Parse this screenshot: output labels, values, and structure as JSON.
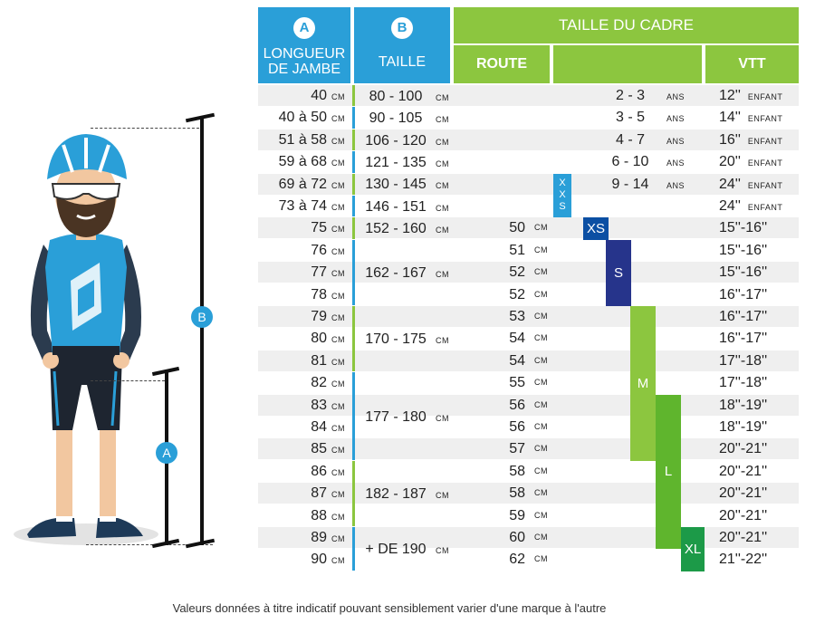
{
  "header": {
    "col_a_letter": "A",
    "col_a_line1": "LONGUEUR",
    "col_a_line2": "DE JAMBE",
    "col_b_letter": "B",
    "col_b_label": "TAILLE",
    "frame_title": "TAILLE DU CADRE",
    "route_label": "ROUTE",
    "vtt_label": "VTT"
  },
  "units": {
    "cm": "CM",
    "ans": "ANS",
    "enfant": "ENFANT"
  },
  "rows": [
    {
      "leg": "40",
      "route": "",
      "age": "2 - 3",
      "vtt": "12''",
      "enfant": true,
      "gray": true
    },
    {
      "leg": "40 à 50",
      "route": "",
      "age": "3 - 5",
      "vtt": "14''",
      "enfant": true,
      "gray": false
    },
    {
      "leg": "51 à 58",
      "route": "",
      "age": "4 - 7",
      "vtt": "16''",
      "enfant": true,
      "gray": true
    },
    {
      "leg": "59 à 68",
      "route": "",
      "age": "6 - 10",
      "vtt": "20''",
      "enfant": true,
      "gray": false
    },
    {
      "leg": "69 à 72",
      "route": "",
      "age": "9 - 14",
      "vtt": "24''",
      "enfant": true,
      "gray": true
    },
    {
      "leg": "73 à 74",
      "route": "",
      "age": "",
      "vtt": "24''",
      "enfant": true,
      "gray": false
    },
    {
      "leg": "75",
      "route": "50",
      "age": "",
      "vtt": "15''-16''",
      "enfant": false,
      "gray": true
    },
    {
      "leg": "76",
      "route": "51",
      "age": "",
      "vtt": "15''-16''",
      "enfant": false,
      "gray": false
    },
    {
      "leg": "77",
      "route": "52",
      "age": "",
      "vtt": "15''-16''",
      "enfant": false,
      "gray": true
    },
    {
      "leg": "78",
      "route": "52",
      "age": "",
      "vtt": "16''-17''",
      "enfant": false,
      "gray": false
    },
    {
      "leg": "79",
      "route": "53",
      "age": "",
      "vtt": "16''-17''",
      "enfant": false,
      "gray": true
    },
    {
      "leg": "80",
      "route": "54",
      "age": "",
      "vtt": "16''-17''",
      "enfant": false,
      "gray": false
    },
    {
      "leg": "81",
      "route": "54",
      "age": "",
      "vtt": "17''-18''",
      "enfant": false,
      "gray": true
    },
    {
      "leg": "82",
      "route": "55",
      "age": "",
      "vtt": "17''-18''",
      "enfant": false,
      "gray": false
    },
    {
      "leg": "83",
      "route": "56",
      "age": "",
      "vtt": "18''-19''",
      "enfant": false,
      "gray": true
    },
    {
      "leg": "84",
      "route": "56",
      "age": "",
      "vtt": "18''-19''",
      "enfant": false,
      "gray": false
    },
    {
      "leg": "85",
      "route": "57",
      "age": "",
      "vtt": "20''-21''",
      "enfant": false,
      "gray": true
    },
    {
      "leg": "86",
      "route": "58",
      "age": "",
      "vtt": "20''-21''",
      "enfant": false,
      "gray": false
    },
    {
      "leg": "87",
      "route": "58",
      "age": "",
      "vtt": "20''-21''",
      "enfant": false,
      "gray": true
    },
    {
      "leg": "88",
      "route": "59",
      "age": "",
      "vtt": "20''-21''",
      "enfant": false,
      "gray": false
    },
    {
      "leg": "89",
      "route": "60",
      "age": "",
      "vtt": "20''-21''",
      "enfant": false,
      "gray": true
    },
    {
      "leg": "90",
      "route": "62",
      "age": "",
      "vtt": "21''-22''",
      "enfant": false,
      "gray": false
    }
  ],
  "height_groups": [
    {
      "label": "80 - 100",
      "start": 0,
      "span": 1,
      "color": "#8cc63f"
    },
    {
      "label": "90 - 105",
      "start": 1,
      "span": 1,
      "color": "#2a9fd8"
    },
    {
      "label": "106 - 120",
      "start": 2,
      "span": 1,
      "color": "#8cc63f"
    },
    {
      "label": "121 - 135",
      "start": 3,
      "span": 1,
      "color": "#2a9fd8"
    },
    {
      "label": "130 - 145",
      "start": 4,
      "span": 1,
      "color": "#8cc63f"
    },
    {
      "label": "146 - 151",
      "start": 5,
      "span": 1,
      "color": "#2a9fd8"
    },
    {
      "label": "152 - 160",
      "start": 6,
      "span": 1,
      "color": "#8cc63f"
    },
    {
      "label": "162 - 167",
      "start": 7,
      "span": 3,
      "color": "#2a9fd8"
    },
    {
      "label": "170 - 175",
      "start": 10,
      "span": 3,
      "color": "#8cc63f"
    },
    {
      "label": "177 - 180",
      "start": 13,
      "span": 4,
      "color": "#2a9fd8"
    },
    {
      "label": "182 - 187",
      "start": 17,
      "span": 3,
      "color": "#8cc63f"
    },
    {
      "label": "+ DE 190",
      "start": 20,
      "span": 2,
      "color": "#2a9fd8"
    }
  ],
  "frame_sizes": [
    {
      "label": "XXS",
      "start": 4,
      "span": 2,
      "color": "#2a9fd8",
      "vertical": true
    },
    {
      "label": "XS",
      "start": 6,
      "span": 1,
      "color": "#0b4fa3",
      "vertical": false
    },
    {
      "label": "S",
      "start": 7,
      "span": 3,
      "color": "#26348b",
      "vertical": false
    },
    {
      "label": "M",
      "start": 10,
      "span": 7,
      "color": "#8cc63f",
      "vertical": false
    },
    {
      "label": "L",
      "start": 14,
      "span": 7,
      "color": "#5fb52d",
      "vertical": false
    },
    {
      "label": "XL",
      "start": 20,
      "span": 2,
      "color": "#1c9a48",
      "vertical": false
    }
  ],
  "figure": {
    "label_a": "A",
    "label_b": "B"
  },
  "footer": "Valeurs données à titre indicatif pouvant sensiblement varier d'une marque à l'autre"
}
